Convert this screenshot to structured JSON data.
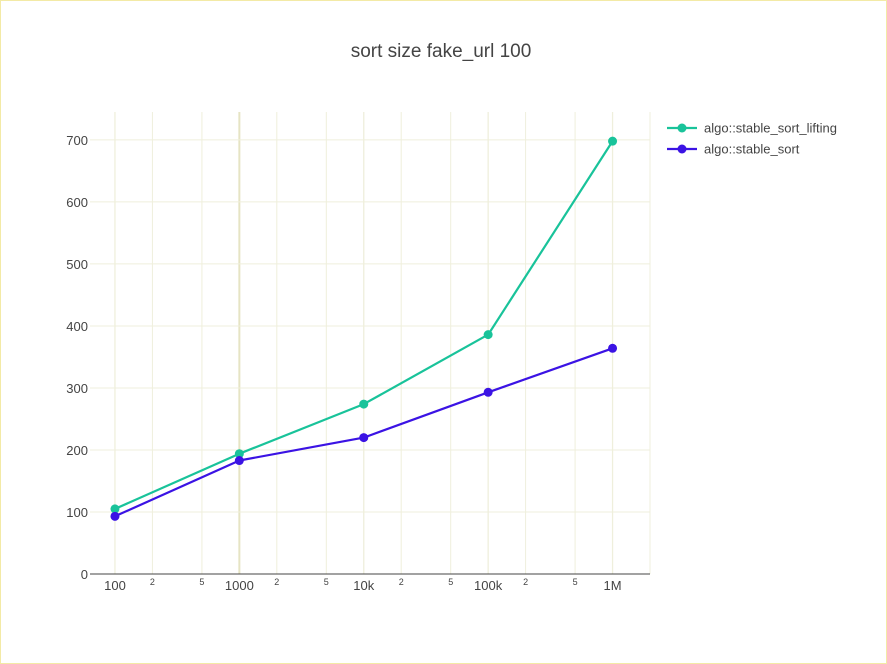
{
  "chart_data": {
    "type": "line",
    "title": "sort size fake_url 100",
    "xlabel": "",
    "ylabel": "",
    "x_scale": "log",
    "x": [
      100,
      1000,
      10000,
      100000,
      1000000
    ],
    "x_tick_labels": [
      "100",
      "1000",
      "10k",
      "100k",
      "1M"
    ],
    "x_minor_tick_labels": [
      "2",
      "5"
    ],
    "xlim": [
      63,
      2000000
    ],
    "ylim": [
      0,
      745
    ],
    "y_ticks": [
      0,
      100,
      200,
      300,
      400,
      500,
      600,
      700
    ],
    "grid": true,
    "legend_position": "top-right",
    "series": [
      {
        "name": "algo::stable_sort_lifting",
        "color": "#19c39a",
        "values": [
          105,
          194,
          274,
          386,
          698
        ]
      },
      {
        "name": "algo::stable_sort",
        "color": "#3b13e4",
        "values": [
          93,
          183,
          220,
          293,
          364
        ]
      }
    ]
  }
}
